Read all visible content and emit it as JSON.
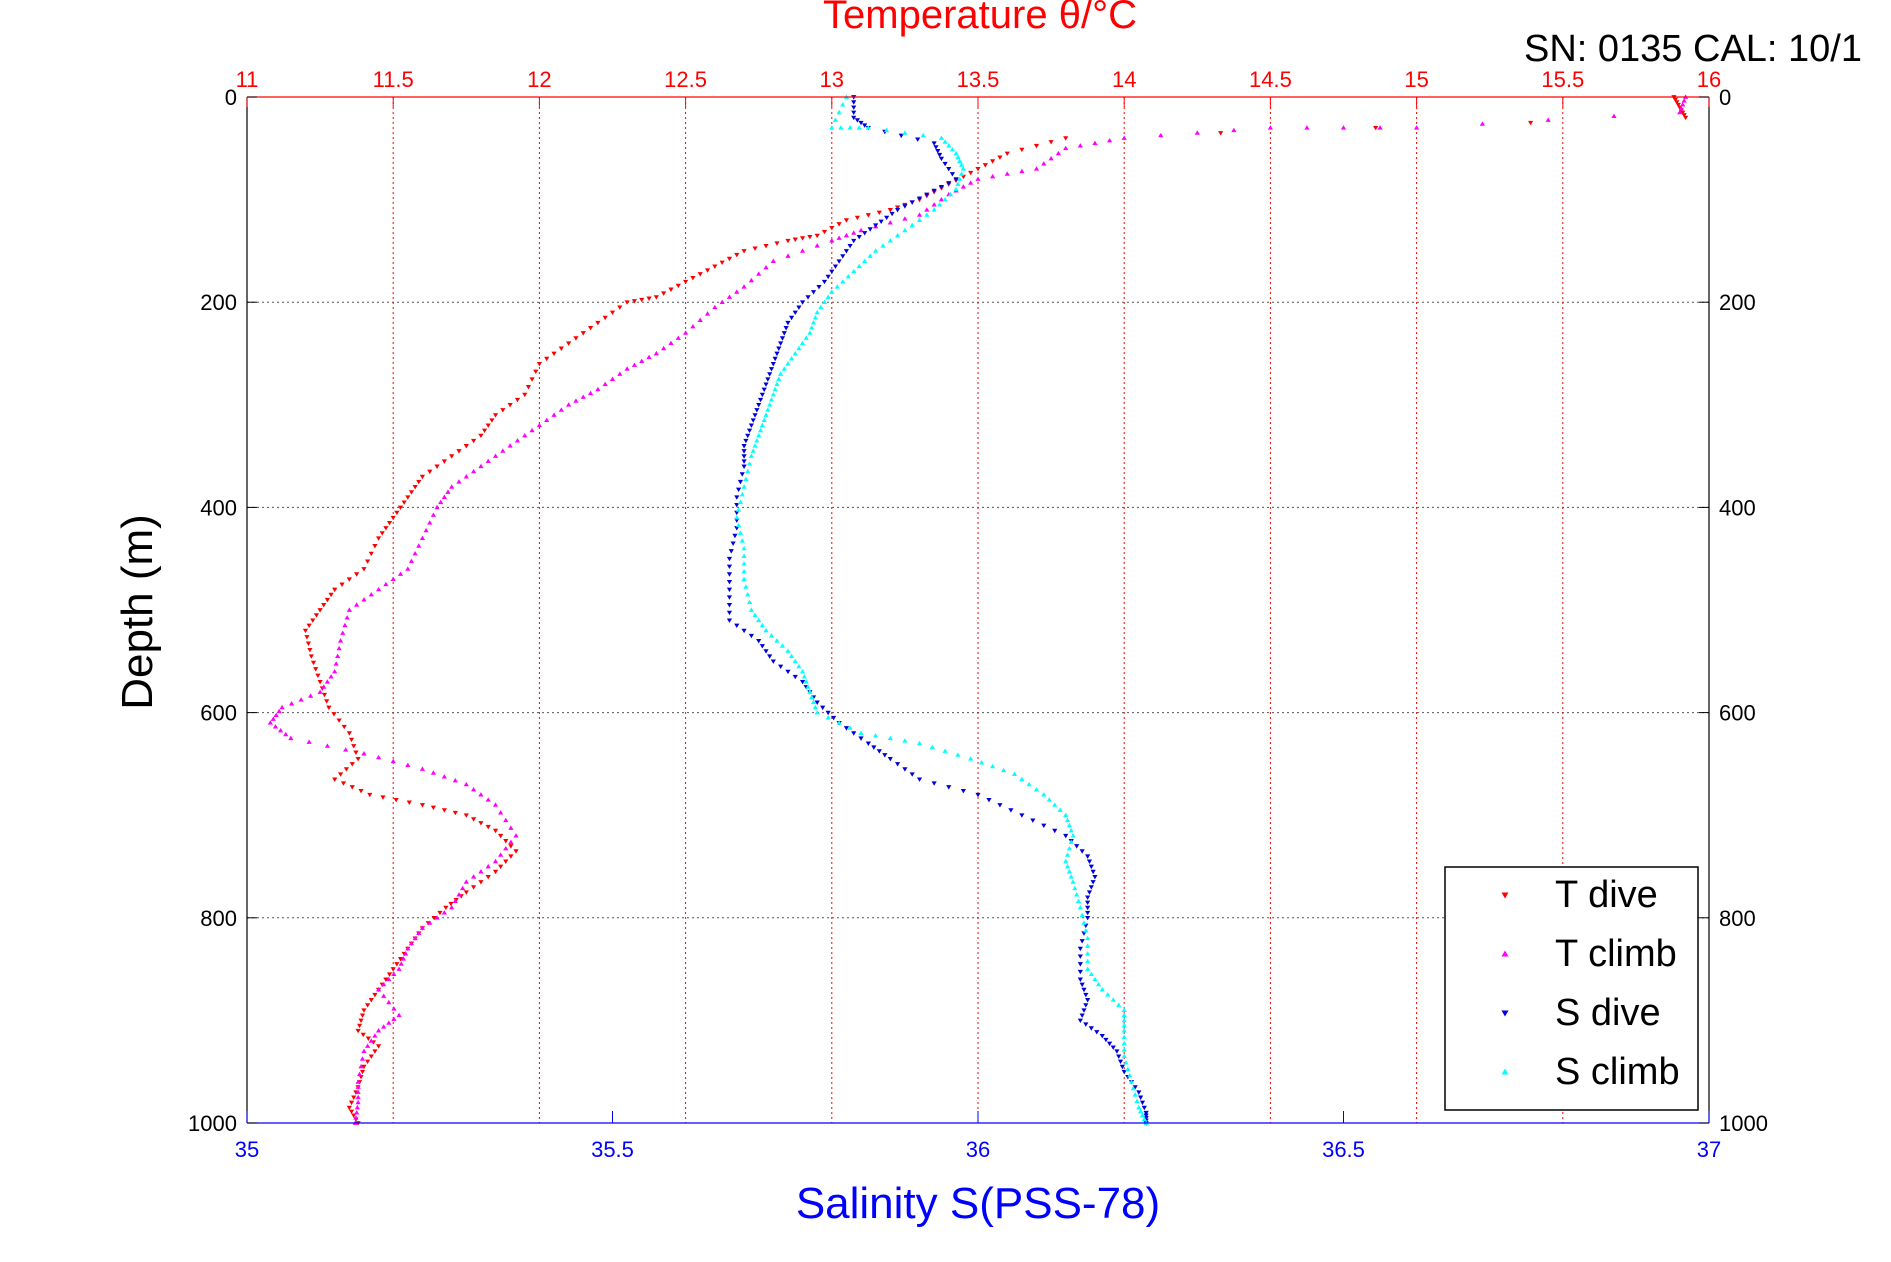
{
  "header": {
    "top_title": "Temperature θ/°C",
    "serial": "SN: 0135  CAL: 10/1"
  },
  "colors": {
    "temperature_axis": "#ff0000",
    "salinity_axis": "#0000ff",
    "t_dive": "#ff0000",
    "t_climb": "#ff00ff",
    "s_dive": "#0000dd",
    "s_climb": "#00ffff"
  },
  "chart_data": {
    "type": "scatter",
    "title": "Temperature θ/°C",
    "xlabel": "Salinity S(PSS-78)",
    "ylabel": "Depth (m)",
    "grid": true,
    "legend_position": "bottom-right",
    "y_axis": {
      "label": "Depth (m)",
      "range": [
        0,
        1000
      ],
      "reversed": true,
      "ticks": [
        0,
        200,
        400,
        600,
        800,
        1000
      ]
    },
    "x_axis_bottom": {
      "label": "Salinity S(PSS-78)",
      "range": [
        35,
        37
      ],
      "ticks": [
        35,
        35.5,
        36,
        36.5,
        37
      ]
    },
    "x_axis_top": {
      "label": "Temperature θ/°C",
      "range": [
        11,
        16
      ],
      "ticks": [
        11,
        11.5,
        12,
        12.5,
        13,
        13.5,
        14,
        14.5,
        15,
        15.5,
        16
      ]
    },
    "series": [
      {
        "name": "T dive",
        "axis": "temperature",
        "marker": "triangle-down",
        "points": [
          [
            15.88,
            0
          ],
          [
            15.9,
            10
          ],
          [
            15.92,
            20
          ],
          [
            13.8,
            40
          ],
          [
            13.6,
            55
          ],
          [
            13.5,
            70
          ],
          [
            13.4,
            85
          ],
          [
            13.3,
            100
          ],
          [
            13.2,
            110
          ],
          [
            13.05,
            120
          ],
          [
            12.95,
            135
          ],
          [
            12.85,
            140
          ],
          [
            12.7,
            150
          ],
          [
            12.6,
            165
          ],
          [
            12.5,
            180
          ],
          [
            12.4,
            195
          ],
          [
            12.3,
            200
          ],
          [
            12.2,
            220
          ],
          [
            12.1,
            240
          ],
          [
            12.0,
            260
          ],
          [
            11.95,
            290
          ],
          [
            11.85,
            310
          ],
          [
            11.8,
            330
          ],
          [
            11.7,
            350
          ],
          [
            11.6,
            370
          ],
          [
            11.55,
            390
          ],
          [
            11.5,
            410
          ],
          [
            11.45,
            430
          ],
          [
            11.4,
            460
          ],
          [
            11.3,
            480
          ],
          [
            11.25,
            500
          ],
          [
            11.2,
            520
          ],
          [
            11.22,
            545
          ],
          [
            11.25,
            570
          ],
          [
            11.28,
            595
          ],
          [
            11.35,
            620
          ],
          [
            11.38,
            645
          ],
          [
            11.3,
            665
          ],
          [
            11.42,
            680
          ],
          [
            11.6,
            690
          ],
          [
            11.75,
            700
          ],
          [
            11.85,
            715
          ],
          [
            11.92,
            735
          ],
          [
            11.85,
            755
          ],
          [
            11.75,
            775
          ],
          [
            11.68,
            790
          ],
          [
            11.6,
            810
          ],
          [
            11.55,
            830
          ],
          [
            11.5,
            850
          ],
          [
            11.45,
            870
          ],
          [
            11.4,
            890
          ],
          [
            11.38,
            910
          ],
          [
            11.45,
            925
          ],
          [
            11.4,
            945
          ],
          [
            11.38,
            965
          ],
          [
            11.35,
            985
          ],
          [
            11.38,
            1000
          ]
        ]
      },
      {
        "name": "T climb",
        "axis": "temperature",
        "marker": "triangle-up",
        "points": [
          [
            15.92,
            0
          ],
          [
            15.9,
            15
          ],
          [
            15.0,
            30
          ],
          [
            14.5,
            30
          ],
          [
            14.0,
            40
          ],
          [
            13.8,
            50
          ],
          [
            13.7,
            70
          ],
          [
            13.5,
            80
          ],
          [
            13.4,
            95
          ],
          [
            13.3,
            115
          ],
          [
            13.1,
            130
          ],
          [
            13.0,
            140
          ],
          [
            12.8,
            160
          ],
          [
            12.7,
            185
          ],
          [
            12.6,
            205
          ],
          [
            12.5,
            230
          ],
          [
            12.4,
            250
          ],
          [
            12.3,
            265
          ],
          [
            12.2,
            285
          ],
          [
            12.1,
            300
          ],
          [
            12.0,
            320
          ],
          [
            11.9,
            340
          ],
          [
            11.8,
            360
          ],
          [
            11.7,
            380
          ],
          [
            11.65,
            400
          ],
          [
            11.6,
            430
          ],
          [
            11.55,
            460
          ],
          [
            11.45,
            480
          ],
          [
            11.35,
            500
          ],
          [
            11.32,
            530
          ],
          [
            11.3,
            560
          ],
          [
            11.25,
            580
          ],
          [
            11.12,
            595
          ],
          [
            11.08,
            610
          ],
          [
            11.15,
            625
          ],
          [
            11.4,
            640
          ],
          [
            11.6,
            655
          ],
          [
            11.75,
            670
          ],
          [
            11.85,
            690
          ],
          [
            11.92,
            720
          ],
          [
            11.85,
            745
          ],
          [
            11.75,
            765
          ],
          [
            11.7,
            790
          ],
          [
            11.6,
            810
          ],
          [
            11.55,
            830
          ],
          [
            11.52,
            850
          ],
          [
            11.45,
            870
          ],
          [
            11.52,
            895
          ],
          [
            11.45,
            910
          ],
          [
            11.4,
            930
          ],
          [
            11.38,
            960
          ],
          [
            11.38,
            980
          ],
          [
            11.37,
            1000
          ]
        ]
      },
      {
        "name": "S dive",
        "axis": "salinity",
        "marker": "triangle-down",
        "points": [
          [
            35.83,
            0
          ],
          [
            35.83,
            20
          ],
          [
            35.85,
            30
          ],
          [
            35.94,
            45
          ],
          [
            35.95,
            60
          ],
          [
            35.97,
            80
          ],
          [
            35.93,
            95
          ],
          [
            35.89,
            110
          ],
          [
            35.86,
            125
          ],
          [
            35.83,
            140
          ],
          [
            35.81,
            160
          ],
          [
            35.79,
            180
          ],
          [
            35.76,
            200
          ],
          [
            35.74,
            220
          ],
          [
            35.73,
            240
          ],
          [
            35.72,
            260
          ],
          [
            35.71,
            280
          ],
          [
            35.7,
            300
          ],
          [
            35.69,
            320
          ],
          [
            35.68,
            340
          ],
          [
            35.68,
            360
          ],
          [
            35.67,
            390
          ],
          [
            35.67,
            420
          ],
          [
            35.66,
            450
          ],
          [
            35.66,
            480
          ],
          [
            35.66,
            510
          ],
          [
            35.7,
            530
          ],
          [
            35.72,
            550
          ],
          [
            35.76,
            570
          ],
          [
            35.78,
            590
          ],
          [
            35.81,
            610
          ],
          [
            35.85,
            630
          ],
          [
            35.88,
            645
          ],
          [
            35.92,
            665
          ],
          [
            36.0,
            680
          ],
          [
            36.06,
            700
          ],
          [
            36.12,
            720
          ],
          [
            36.15,
            740
          ],
          [
            36.16,
            760
          ],
          [
            36.15,
            780
          ],
          [
            36.15,
            800
          ],
          [
            36.14,
            830
          ],
          [
            36.14,
            860
          ],
          [
            36.15,
            880
          ],
          [
            36.14,
            900
          ],
          [
            36.17,
            915
          ],
          [
            36.19,
            930
          ],
          [
            36.2,
            950
          ],
          [
            36.22,
            970
          ],
          [
            36.23,
            990
          ],
          [
            36.23,
            1000
          ]
        ]
      },
      {
        "name": "S climb",
        "axis": "salinity",
        "marker": "triangle-up",
        "points": [
          [
            35.82,
            0
          ],
          [
            35.8,
            30
          ],
          [
            35.85,
            30
          ],
          [
            35.95,
            40
          ],
          [
            35.97,
            55
          ],
          [
            35.98,
            70
          ],
          [
            35.97,
            90
          ],
          [
            35.94,
            110
          ],
          [
            35.9,
            130
          ],
          [
            35.86,
            150
          ],
          [
            35.83,
            170
          ],
          [
            35.8,
            190
          ],
          [
            35.78,
            210
          ],
          [
            35.77,
            230
          ],
          [
            35.75,
            250
          ],
          [
            35.73,
            270
          ],
          [
            35.72,
            290
          ],
          [
            35.71,
            310
          ],
          [
            35.7,
            330
          ],
          [
            35.69,
            350
          ],
          [
            35.68,
            380
          ],
          [
            35.67,
            410
          ],
          [
            35.68,
            440
          ],
          [
            35.68,
            470
          ],
          [
            35.69,
            500
          ],
          [
            35.71,
            520
          ],
          [
            35.74,
            540
          ],
          [
            35.76,
            560
          ],
          [
            35.77,
            580
          ],
          [
            35.78,
            600
          ],
          [
            35.84,
            620
          ],
          [
            35.92,
            630
          ],
          [
            35.99,
            645
          ],
          [
            36.05,
            660
          ],
          [
            36.09,
            680
          ],
          [
            36.12,
            700
          ],
          [
            36.13,
            720
          ],
          [
            36.12,
            745
          ],
          [
            36.13,
            765
          ],
          [
            36.14,
            790
          ],
          [
            36.15,
            820
          ],
          [
            36.15,
            850
          ],
          [
            36.17,
            870
          ],
          [
            36.2,
            890
          ],
          [
            36.2,
            910
          ],
          [
            36.2,
            935
          ],
          [
            36.21,
            960
          ],
          [
            36.22,
            985
          ],
          [
            36.23,
            1000
          ]
        ]
      }
    ]
  }
}
